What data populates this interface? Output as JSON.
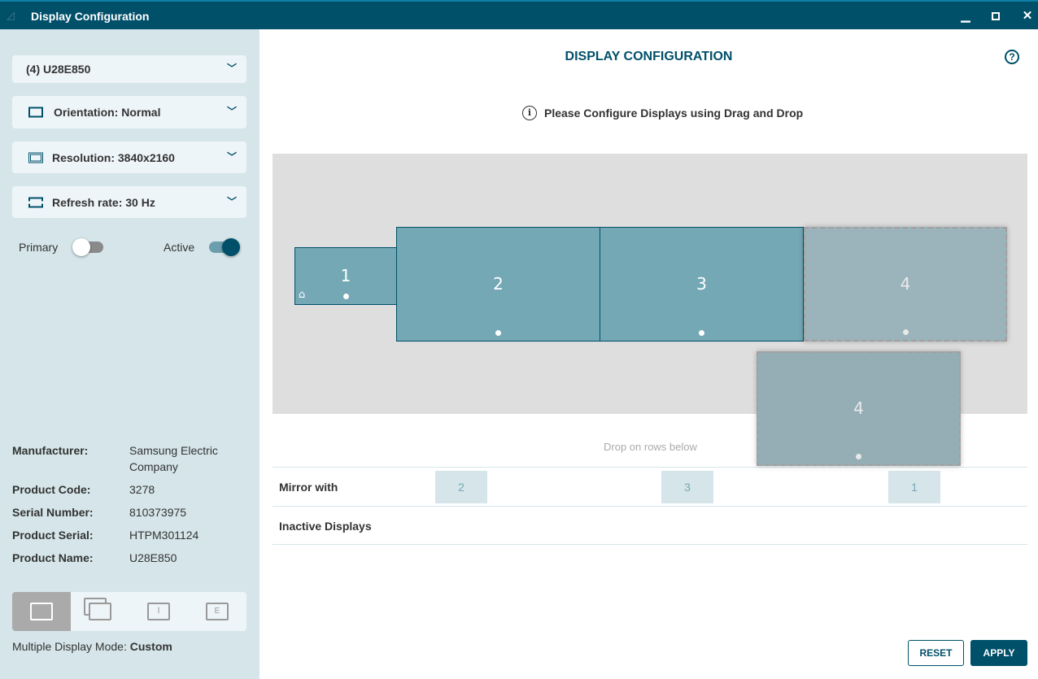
{
  "window": {
    "title": "Display Configuration",
    "minimize_icon": "minimize-icon",
    "maximize_icon": "maximize-icon",
    "close_icon": "close-icon"
  },
  "colors": {
    "titlebar": "#00506a",
    "sidebar": "#d5e5e9",
    "display_active": "#74a8b5",
    "display_inactive": "#9bb3ba",
    "accent": "#00506a"
  },
  "sidebar": {
    "display_select": "(4) U28E850",
    "orientation": "Orientation: Normal",
    "resolution": "Resolution: 3840x2160",
    "refresh_rate": "Refresh rate: 30 Hz",
    "primary_label": "Primary",
    "primary_on": false,
    "active_label": "Active",
    "active_on": true,
    "info": [
      {
        "key": "Manufacturer:",
        "value": "Samsung Electric Company"
      },
      {
        "key": "Product Code:",
        "value": "3278"
      },
      {
        "key": "Serial Number:",
        "value": "810373975"
      },
      {
        "key": "Product Serial:",
        "value": "HTPM301124"
      },
      {
        "key": "Product Name:",
        "value": "U28E850"
      }
    ],
    "modes": [
      "custom",
      "mirror",
      "single",
      "extend"
    ],
    "selected_mode": "custom",
    "mode_label": "Multiple Display Mode:",
    "mode_value": "Custom"
  },
  "main": {
    "heading": "DISPLAY CONFIGURATION",
    "hint": "Please Configure Displays using Drag and Drop",
    "displays": [
      {
        "label": "1",
        "primary": true
      },
      {
        "label": "2"
      },
      {
        "label": "3"
      },
      {
        "label": "4",
        "placeholder": true
      }
    ],
    "dragging": {
      "label": "4"
    },
    "drop_hint": "Drop on rows below",
    "mirror_label": "Mirror with",
    "mirror_chips": [
      "2",
      "3",
      "1"
    ],
    "inactive_label": "Inactive Displays",
    "reset": "RESET",
    "apply": "APPLY"
  }
}
